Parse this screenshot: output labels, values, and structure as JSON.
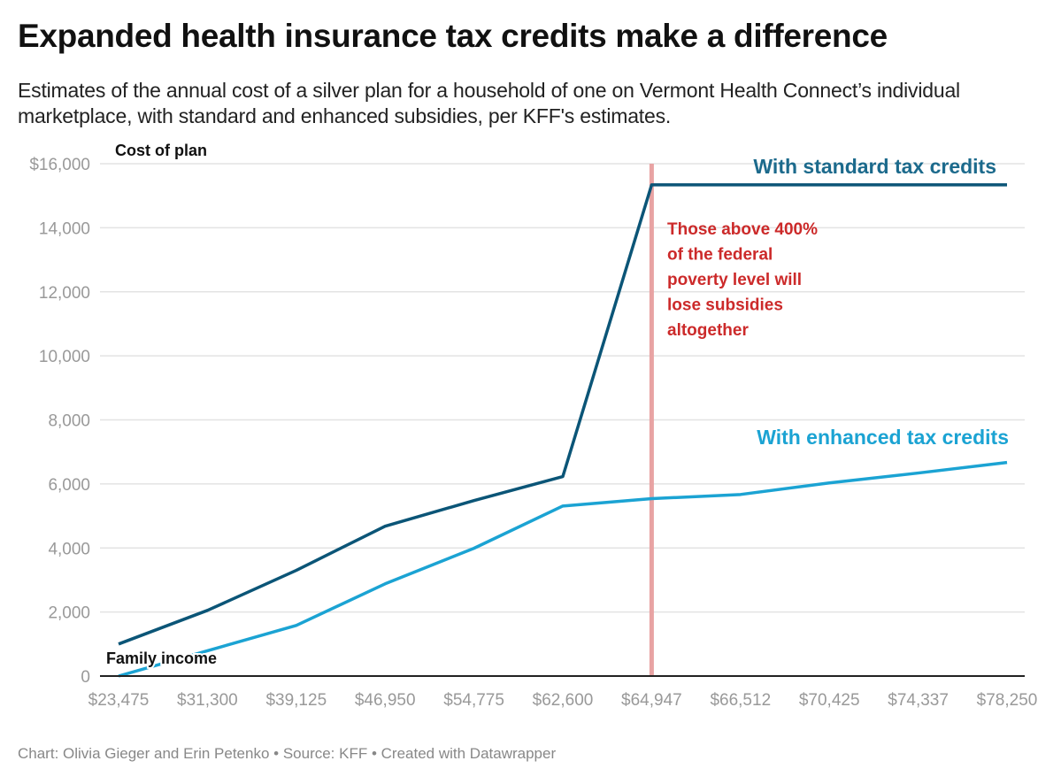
{
  "title": "Expanded health insurance tax credits make a difference",
  "subtitle": "Estimates of the annual cost of a silver plan for a household of one on Vermont Health Connect’s individual marketplace, with standard and enhanced subsidies, per KFF's estimates.",
  "footer": "Chart: Olivia Gieger and Erin Petenko • Source: KFF • Created with Datawrapper",
  "chart_data": {
    "type": "line",
    "title": "Expanded health insurance tax credits make a difference",
    "xlabel": "Family income",
    "ylabel": "Cost of plan",
    "categories": [
      "$23,475",
      "$31,300",
      "$39,125",
      "$46,950",
      "$54,775",
      "$62,600",
      "$64,947",
      "$66,512",
      "$70,425",
      "$74,337",
      "$78,250"
    ],
    "ylim": [
      0,
      16000
    ],
    "yticks": [
      0,
      2000,
      4000,
      6000,
      8000,
      10000,
      12000,
      14000,
      16000
    ],
    "ytick_labels": [
      "0",
      "2,000",
      "4,000",
      "6,000",
      "8,000",
      "10,000",
      "12,000",
      "14,000",
      "$16,000"
    ],
    "grid": true,
    "series": [
      {
        "name": "With standard tax credits",
        "color": "#0b5577",
        "values": [
          1000,
          2050,
          3300,
          4680,
          5480,
          6230,
          15340,
          15340,
          15340,
          15340,
          15340
        ]
      },
      {
        "name": "With enhanced tax credits",
        "color": "#1ba3d3",
        "values": [
          0,
          790,
          1580,
          2880,
          3990,
          5310,
          5540,
          5670,
          6030,
          6340,
          6670
        ]
      }
    ],
    "reference_line": {
      "category": "$64,947",
      "color": "#e8a3a3"
    },
    "annotation": {
      "lines": [
        "Those above 400%",
        "of the federal",
        "poverty level will",
        "lose subsidies",
        "altogether"
      ],
      "color": "#cc2a2a"
    }
  }
}
